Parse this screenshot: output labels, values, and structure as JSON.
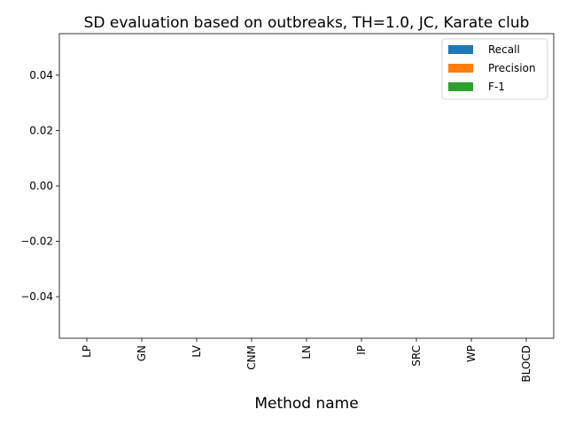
{
  "chart_data": {
    "type": "bar",
    "title": "SD evaluation based on outbreaks, TH=1.0, JC, Karate club",
    "xlabel": "Method name",
    "ylabel": "",
    "categories": [
      "LP",
      "GN",
      "LV",
      "CNM",
      "LN",
      "IP",
      "SRC",
      "WP",
      "BLOCD"
    ],
    "series": [
      {
        "name": "Recall",
        "color": "#1f77b4",
        "values": [
          0,
          0,
          0,
          0,
          0,
          0,
          0,
          0,
          0
        ]
      },
      {
        "name": "Precision",
        "color": "#ff7f0e",
        "values": [
          0,
          0,
          0,
          0,
          0,
          0,
          0,
          0,
          0
        ]
      },
      {
        "name": "F-1",
        "color": "#2ca02c",
        "values": [
          0,
          0,
          0,
          0,
          0,
          0,
          0,
          0,
          0
        ]
      }
    ],
    "ylim": [
      -0.055,
      0.055
    ],
    "yticks": [
      "0.04",
      "0.02",
      "0.00",
      "−0.02",
      "−0.04"
    ],
    "ytick_values": [
      0.04,
      0.02,
      0.0,
      -0.02,
      -0.04
    ],
    "grid": false,
    "legend_position": "top-right"
  }
}
